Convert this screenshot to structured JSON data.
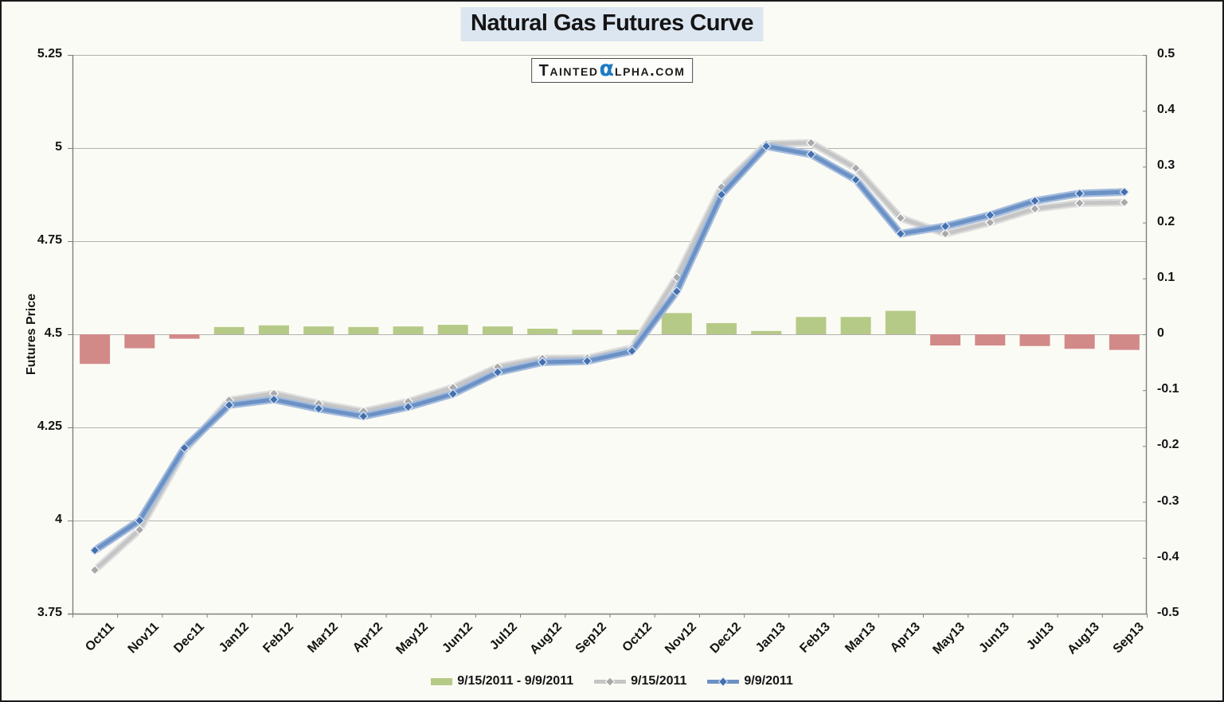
{
  "page": {
    "background": "#fbfbf5",
    "border_color": "#1a1a1a"
  },
  "title": {
    "text": "Natural Gas Futures Curve",
    "highlight_color": "#dce6f1"
  },
  "logo": {
    "prefix": "Tainted",
    "alpha": "α",
    "suffix": "lpha.com",
    "alpha_color": "#1e7bc4"
  },
  "chart_data": {
    "type": "combo: bar + line",
    "title": "Natural Gas Futures Curve",
    "categories": [
      "Oct11",
      "Nov11",
      "Dec11",
      "Jan12",
      "Feb12",
      "Mar12",
      "Apr12",
      "May12",
      "Jun12",
      "Jul12",
      "Aug12",
      "Sep12",
      "Oct12",
      "Nov12",
      "Dec12",
      "Jan13",
      "Feb13",
      "Mar13",
      "Apr13",
      "May13",
      "Jun13",
      "Jul13",
      "Aug13",
      "Sep13"
    ],
    "series": [
      {
        "name": "9/15/2011 - 9/9/2011",
        "type": "bar",
        "axis": "right",
        "color_positive": "#b6ca87",
        "color_negative": "#d28a88",
        "values": [
          -0.053,
          -0.025,
          -0.008,
          0.013,
          0.016,
          0.014,
          0.013,
          0.014,
          0.017,
          0.014,
          0.01,
          0.008,
          0.008,
          0.038,
          0.02,
          0.006,
          0.031,
          0.031,
          0.042,
          -0.02,
          -0.02,
          -0.021,
          -0.026,
          -0.028
        ]
      },
      {
        "name": "9/15/2011",
        "type": "line",
        "axis": "left",
        "color": "#c5c5c5",
        "halo": "#dedede",
        "marker": "#a9a9a9",
        "marker_outline": "#ffffff",
        "values": [
          3.867,
          3.975,
          4.187,
          4.323,
          4.341,
          4.314,
          4.293,
          4.319,
          4.357,
          4.412,
          4.435,
          4.436,
          4.463,
          4.653,
          4.895,
          5.011,
          5.014,
          4.946,
          4.812,
          4.77,
          4.8,
          4.837,
          4.852,
          4.854
        ]
      },
      {
        "name": "9/9/2011",
        "type": "line",
        "axis": "left",
        "color": "#6b91c5",
        "halo": "#a3bbdd",
        "marker": "#4370ae",
        "marker_outline": "#dce6f2",
        "values": [
          3.92,
          4.0,
          4.195,
          4.31,
          4.325,
          4.3,
          4.28,
          4.305,
          4.34,
          4.398,
          4.425,
          4.428,
          4.455,
          4.615,
          4.875,
          5.005,
          4.983,
          4.915,
          4.77,
          4.79,
          4.82,
          4.858,
          4.878,
          4.882
        ]
      }
    ],
    "left_axis": {
      "title": "Futures Price",
      "min": 3.75,
      "max": 5.25,
      "tick_labels": [
        "5.25",
        "5",
        "4.75",
        "4.5",
        "4.25",
        "4",
        "3.75"
      ]
    },
    "right_axis": {
      "min": -0.5,
      "max": 0.5,
      "tick_labels": [
        "0.5",
        "0.4",
        "0.3",
        "0.2",
        "0.1",
        "0",
        "-0.1",
        "-0.2",
        "-0.3",
        "-0.4",
        "-0.5"
      ]
    },
    "grid": true,
    "legend_position": "bottom",
    "gridline_color": "#b2b2b2",
    "axis_color": "#7f7f7f"
  }
}
